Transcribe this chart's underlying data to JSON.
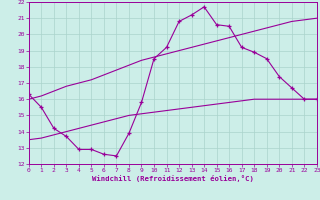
{
  "xlabel": "Windchill (Refroidissement éolien,°C)",
  "background_color": "#cceee8",
  "grid_color": "#aad4cc",
  "line_color": "#990099",
  "xlim": [
    0,
    23
  ],
  "ylim": [
    12,
    22
  ],
  "hours": [
    0,
    1,
    2,
    3,
    4,
    5,
    6,
    7,
    8,
    9,
    10,
    11,
    12,
    13,
    14,
    15,
    16,
    17,
    18,
    19,
    20,
    21,
    22,
    23
  ],
  "windchill": [
    16.3,
    15.5,
    14.2,
    13.7,
    12.9,
    12.9,
    12.6,
    12.5,
    13.9,
    15.8,
    18.5,
    19.2,
    20.8,
    21.2,
    21.7,
    20.6,
    20.5,
    19.2,
    18.9,
    18.5,
    17.4,
    16.7,
    16.0,
    16.0
  ],
  "temp_upper": [
    16.0,
    16.2,
    16.5,
    16.8,
    17.0,
    17.2,
    17.5,
    17.8,
    18.1,
    18.4,
    18.6,
    18.8,
    19.0,
    19.2,
    19.4,
    19.6,
    19.8,
    20.0,
    20.2,
    20.4,
    20.6,
    20.8,
    20.9,
    21.0
  ],
  "temp_lower": [
    13.5,
    13.6,
    13.8,
    14.0,
    14.2,
    14.4,
    14.6,
    14.8,
    15.0,
    15.1,
    15.2,
    15.3,
    15.4,
    15.5,
    15.6,
    15.7,
    15.8,
    15.9,
    16.0,
    16.0,
    16.0,
    16.0,
    16.0,
    16.0
  ]
}
